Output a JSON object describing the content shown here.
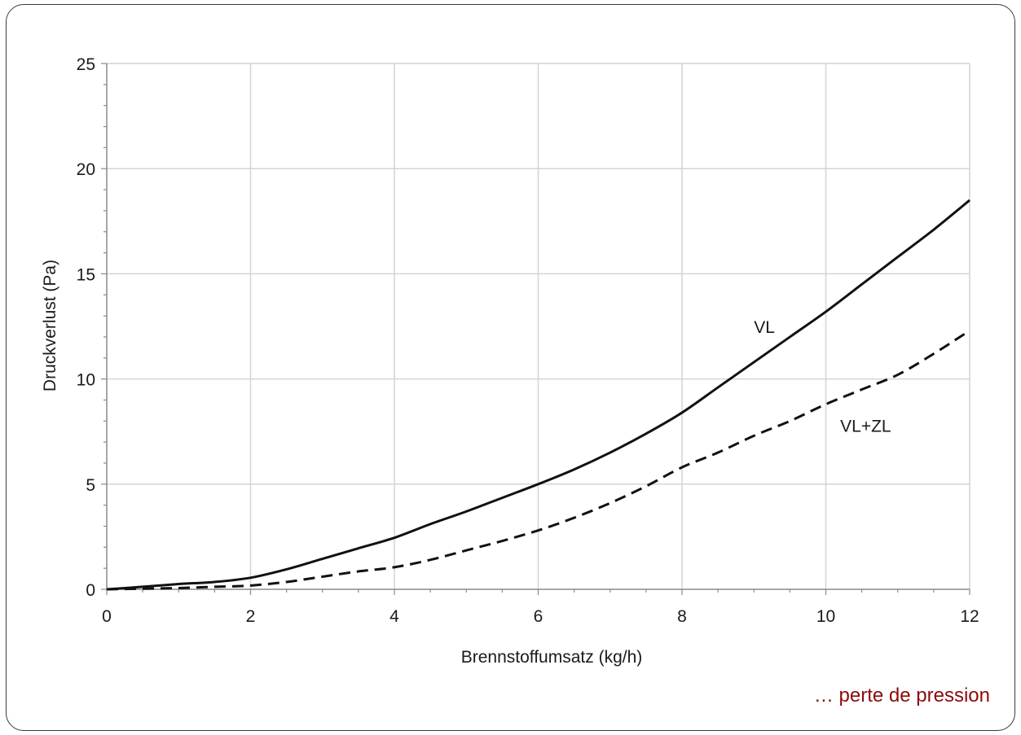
{
  "caption": "… perte de pression",
  "chart_data": {
    "type": "line",
    "xlabel": "Brennstoffumsatz (kg/h)",
    "ylabel": "Druckverlust (Pa)",
    "xlim": [
      0,
      12
    ],
    "ylim": [
      0,
      25
    ],
    "xticks": [
      0,
      2,
      4,
      6,
      8,
      10,
      12
    ],
    "yticks": [
      0,
      5,
      10,
      15,
      20,
      25
    ],
    "grid": true,
    "series": [
      {
        "name": "VL",
        "style": "solid",
        "color": "#111111",
        "x": [
          0,
          0.5,
          1,
          1.5,
          2,
          2.5,
          3,
          3.5,
          4,
          4.5,
          5,
          5.5,
          6,
          6.5,
          7,
          7.5,
          8,
          8.5,
          9,
          9.5,
          10,
          10.5,
          11,
          11.5,
          12
        ],
        "y": [
          0,
          0.12,
          0.25,
          0.35,
          0.55,
          0.95,
          1.45,
          1.95,
          2.45,
          3.1,
          3.7,
          4.35,
          5.0,
          5.7,
          6.5,
          7.4,
          8.4,
          9.6,
          10.8,
          12.0,
          13.2,
          14.5,
          15.8,
          17.1,
          18.5
        ]
      },
      {
        "name": "VL+ZL",
        "style": "dashed",
        "color": "#111111",
        "x": [
          0,
          0.5,
          1,
          1.5,
          2,
          2.5,
          3,
          3.5,
          4,
          4.5,
          5,
          5.5,
          6,
          6.5,
          7,
          7.5,
          8,
          8.5,
          9,
          9.5,
          10,
          10.5,
          11,
          11.5,
          12
        ],
        "y": [
          0,
          0.03,
          0.06,
          0.12,
          0.18,
          0.35,
          0.6,
          0.85,
          1.05,
          1.4,
          1.85,
          2.3,
          2.8,
          3.4,
          4.1,
          4.9,
          5.8,
          6.5,
          7.3,
          8.0,
          8.8,
          9.5,
          10.2,
          11.2,
          12.3
        ]
      }
    ],
    "annotations": [
      {
        "text": "VL",
        "x": 9.0,
        "y": 12.5
      },
      {
        "text": "VL+ZL",
        "x": 10.2,
        "y": 7.8
      }
    ]
  }
}
